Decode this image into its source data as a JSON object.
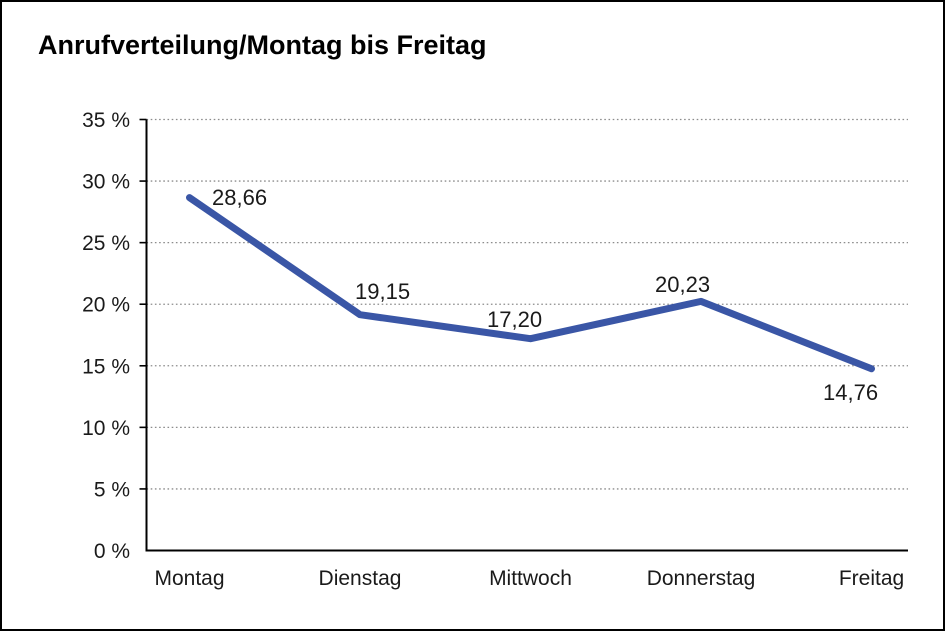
{
  "window": {
    "title": "Anrufverteilung/Montag bis Freitag"
  },
  "chart_data": {
    "type": "line",
    "title": "Anrufverteilung/Montag bis Freitag",
    "categories": [
      "Montag",
      "Dienstag",
      "Mittwoch",
      "Donnerstag",
      "Freitag"
    ],
    "series": [
      {
        "name": "Anrufverteilung",
        "values": [
          28.66,
          19.15,
          17.2,
          20.23,
          14.76
        ]
      }
    ],
    "value_labels": [
      "28,66",
      "19,15",
      "17,20",
      "20,23",
      "14,76"
    ],
    "yticks": [
      0,
      5,
      10,
      15,
      20,
      25,
      30,
      35
    ],
    "ytick_labels": [
      "0 %",
      "5 %",
      "10 %",
      "15 %",
      "20 %",
      "25 %",
      "30 %",
      "35 %"
    ],
    "ylim": [
      0,
      35
    ],
    "xlabel": "",
    "ylabel": "",
    "grid": "horizontal-dotted",
    "legend": "none",
    "colors": {
      "line": "#3A56A6",
      "axis": "#000000",
      "gridline": "#8c8c8c",
      "text": "#1a1a1a",
      "title": "#000000",
      "background": "#ffffff"
    }
  }
}
